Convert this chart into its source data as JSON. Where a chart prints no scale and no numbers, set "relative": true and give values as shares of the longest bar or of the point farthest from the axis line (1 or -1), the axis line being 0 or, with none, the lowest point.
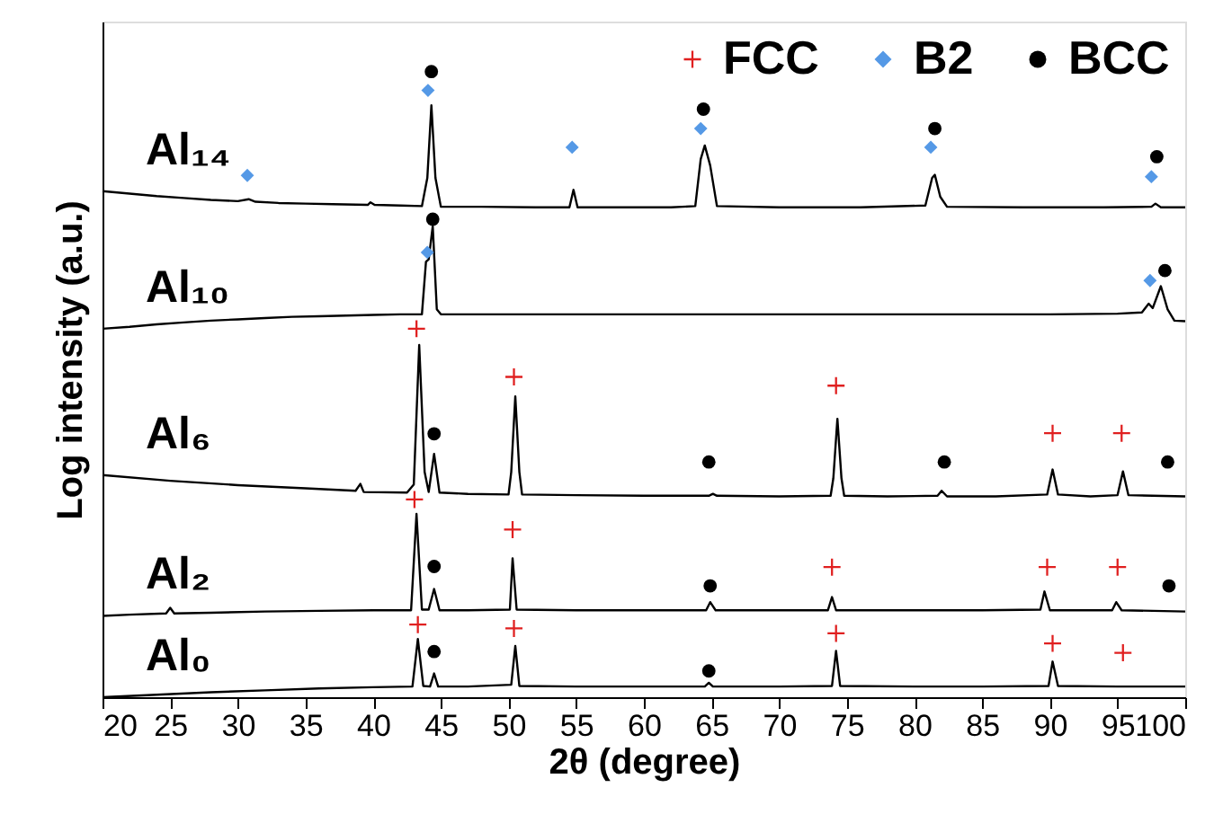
{
  "chart_data": {
    "type": "line",
    "xlabel": "2θ (degree)",
    "ylabel": "Log intensity (a.u.)",
    "relative": true,
    "xlim": [
      20,
      100
    ],
    "xticks": [
      20,
      25,
      30,
      35,
      40,
      45,
      50,
      55,
      60,
      65,
      70,
      75,
      80,
      85,
      90,
      95,
      100
    ],
    "grid": false,
    "legend": "top right",
    "line_style": "solid",
    "series": [
      {
        "name": "Al₁₄",
        "color": "#000000",
        "x": [
          20,
          22,
          24,
          26,
          28,
          30,
          30.8,
          31.3,
          33,
          35,
          37,
          39.6,
          39.8,
          40.1,
          42,
          43.6,
          44.0,
          44.3,
          44.6,
          45.0,
          48,
          52,
          54.5,
          54.8,
          55.1,
          58,
          62,
          63.8,
          64.2,
          64.5,
          64.9,
          65.4,
          70,
          76,
          80.8,
          81.3,
          81.5,
          81.9,
          82.4,
          88,
          94,
          97.5,
          97.8,
          98.2,
          100
        ],
        "values": [
          0.809,
          0.805,
          0.801,
          0.798,
          0.795,
          0.793,
          0.796,
          0.792,
          0.79,
          0.789,
          0.788,
          0.787,
          0.791,
          0.787,
          0.786,
          0.785,
          0.83,
          0.946,
          0.83,
          0.784,
          0.784,
          0.783,
          0.783,
          0.811,
          0.783,
          0.783,
          0.783,
          0.785,
          0.86,
          0.882,
          0.85,
          0.785,
          0.783,
          0.783,
          0.786,
          0.83,
          0.835,
          0.8,
          0.784,
          0.783,
          0.783,
          0.784,
          0.789,
          0.783,
          0.783
        ]
      },
      {
        "name": "Al₁₀",
        "color": "#000000",
        "x": [
          20,
          22,
          24,
          26,
          28,
          30,
          32,
          34,
          36,
          38,
          40,
          42,
          43.6,
          43.9,
          44.1,
          44.4,
          44.7,
          45.0,
          50,
          55,
          60,
          65,
          70,
          75,
          80,
          85,
          90,
          95,
          96.8,
          97.3,
          97.6,
          98.2,
          98.7,
          99.2,
          100
        ],
        "values": [
          0.589,
          0.592,
          0.596,
          0.599,
          0.602,
          0.604,
          0.606,
          0.608,
          0.609,
          0.61,
          0.611,
          0.612,
          0.612,
          0.696,
          0.7,
          0.753,
          0.62,
          0.612,
          0.612,
          0.612,
          0.612,
          0.612,
          0.612,
          0.612,
          0.612,
          0.612,
          0.612,
          0.613,
          0.615,
          0.629,
          0.622,
          0.657,
          0.62,
          0.602,
          0.601
        ]
      },
      {
        "name": "Al₆",
        "color": "#000000",
        "x": [
          20,
          25,
          30,
          35,
          38.7,
          39.05,
          39.3,
          42.5,
          43.0,
          43.4,
          43.8,
          44.1,
          44.5,
          44.9,
          47,
          50.0,
          50.2,
          50.5,
          50.8,
          51.0,
          55,
          60,
          64.8,
          65.1,
          65.4,
          70,
          73.8,
          74.0,
          74.3,
          74.6,
          74.8,
          78,
          81.7,
          82.0,
          82.4,
          86,
          89.8,
          90.2,
          90.6,
          93,
          95.0,
          95.4,
          95.8,
          100
        ],
        "values": [
          0.355,
          0.346,
          0.339,
          0.334,
          0.33,
          0.341,
          0.328,
          0.327,
          0.34,
          0.563,
          0.36,
          0.328,
          0.389,
          0.327,
          0.325,
          0.324,
          0.36,
          0.481,
          0.36,
          0.324,
          0.323,
          0.322,
          0.322,
          0.325,
          0.322,
          0.321,
          0.322,
          0.35,
          0.445,
          0.35,
          0.322,
          0.321,
          0.322,
          0.33,
          0.321,
          0.321,
          0.324,
          0.364,
          0.324,
          0.321,
          0.323,
          0.361,
          0.323,
          0.321
        ]
      },
      {
        "name": "Al₂",
        "color": "#000000",
        "x": [
          20,
          22,
          24.7,
          25.0,
          25.3,
          28,
          32,
          36,
          40,
          42.8,
          43.2,
          43.6,
          44.1,
          44.5,
          44.9,
          47,
          50.1,
          50.3,
          50.6,
          55,
          60,
          64.6,
          64.9,
          65.3,
          70,
          73.6,
          73.9,
          74.2,
          80,
          85,
          89.3,
          89.6,
          90.0,
          94.6,
          94.9,
          95.3,
          100
        ],
        "values": [
          0.13,
          0.132,
          0.134,
          0.143,
          0.134,
          0.135,
          0.137,
          0.138,
          0.139,
          0.139,
          0.293,
          0.14,
          0.14,
          0.173,
          0.139,
          0.139,
          0.14,
          0.222,
          0.14,
          0.139,
          0.139,
          0.139,
          0.152,
          0.139,
          0.139,
          0.139,
          0.16,
          0.139,
          0.139,
          0.139,
          0.14,
          0.169,
          0.139,
          0.139,
          0.152,
          0.139,
          0.137
        ]
      },
      {
        "name": "Al₀",
        "color": "#000000",
        "x": [
          20,
          24,
          28,
          32,
          36,
          40,
          42.9,
          43.3,
          43.7,
          44.2,
          44.5,
          44.8,
          47,
          50.2,
          50.5,
          50.8,
          55,
          60,
          64.5,
          64.8,
          65.1,
          70,
          73.9,
          74.2,
          74.5,
          80,
          85,
          89.9,
          90.2,
          90.6,
          95,
          100
        ],
        "values": [
          0.0,
          0.004,
          0.008,
          0.011,
          0.014,
          0.016,
          0.017,
          0.093,
          0.018,
          0.017,
          0.038,
          0.017,
          0.017,
          0.02,
          0.082,
          0.018,
          0.017,
          0.017,
          0.017,
          0.023,
          0.017,
          0.017,
          0.018,
          0.074,
          0.018,
          0.017,
          0.017,
          0.018,
          0.057,
          0.018,
          0.017,
          0.017
        ]
      },
      {
        "name": "FCC",
        "type": "scatter",
        "marker": "cross",
        "color": "#e02020",
        "x": [
          43.2,
          50.4,
          74.2,
          90.2,
          95.3,
          43.05,
          50.3,
          73.9,
          89.8,
          95.0,
          43.3,
          50.4,
          74.2,
          90.2,
          95.4
        ],
        "values": [
          0.589,
          0.512,
          0.498,
          0.422,
          0.422,
          0.316,
          0.268,
          0.208,
          0.208,
          0.208,
          0.116,
          0.11,
          0.102,
          0.086,
          0.071
        ]
      },
      {
        "name": "B2",
        "type": "scatter",
        "marker": "diamond",
        "color": "#5599e6",
        "x": [
          44.05,
          30.7,
          54.7,
          64.2,
          81.2,
          97.5,
          44.0,
          97.4
        ],
        "values": [
          0.97,
          0.834,
          0.879,
          0.909,
          0.879,
          0.832,
          0.711,
          0.666
        ]
      },
      {
        "name": "BCC",
        "type": "scatter",
        "marker": "circle",
        "color": "#000000",
        "x": [
          44.3,
          64.4,
          81.5,
          97.9,
          44.4,
          98.5,
          44.5,
          64.8,
          82.2,
          98.7,
          44.5,
          64.9,
          98.8,
          44.5,
          64.8
        ],
        "values": [
          1.0,
          0.94,
          0.909,
          0.864,
          0.764,
          0.682,
          0.421,
          0.376,
          0.376,
          0.376,
          0.209,
          0.178,
          0.178,
          0.073,
          0.042
        ]
      }
    ]
  }
}
